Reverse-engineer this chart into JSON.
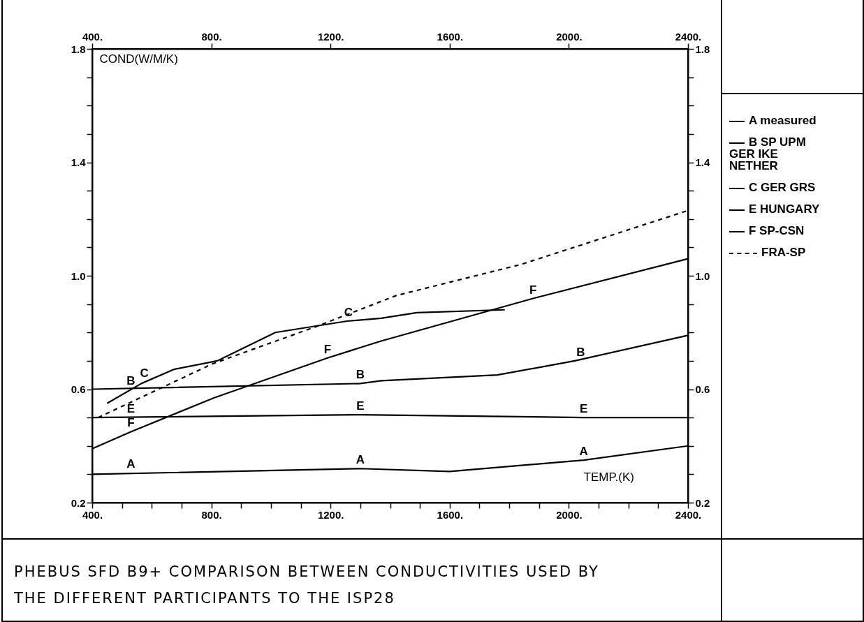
{
  "chart_data": {
    "type": "line",
    "title": "PHEBUS SFD B9+ COMPARISON BETWEEN CONDUCTIVITIES USED BY THE DIFFERENT PARTICIPANTS TO THE ISP28",
    "xlabel": "TEMP.(K)",
    "ylabel": "COND(W/M/K)",
    "legend": "right",
    "line_style": "solid",
    "xlim": [
      400,
      2400
    ],
    "xticks": [
      {
        "value": 400,
        "label": "400."
      },
      {
        "value": 500,
        "label": null
      },
      {
        "value": 600,
        "label": null
      },
      {
        "value": 700,
        "label": null
      },
      {
        "value": 800,
        "label": "800."
      },
      {
        "value": 900,
        "label": null
      },
      {
        "value": 1000,
        "label": null
      },
      {
        "value": 1100,
        "label": null
      },
      {
        "value": 1200,
        "label": "1200."
      },
      {
        "value": 1300,
        "label": null
      },
      {
        "value": 1400,
        "label": null
      },
      {
        "value": 1500,
        "label": null
      },
      {
        "value": 1600,
        "label": "1600."
      },
      {
        "value": 1700,
        "label": null
      },
      {
        "value": 1800,
        "label": null
      },
      {
        "value": 1900,
        "label": null
      },
      {
        "value": 2000,
        "label": "2000."
      },
      {
        "value": 2100,
        "label": null
      },
      {
        "value": 2200,
        "label": null
      },
      {
        "value": 2300,
        "label": null
      },
      {
        "value": 2400,
        "label": "2400."
      }
    ],
    "x2lim": [
      400,
      2400
    ],
    "x2ticks": [
      {
        "value": 400,
        "label": "400."
      },
      {
        "value": 800,
        "label": "800."
      },
      {
        "value": 1200,
        "label": "1200."
      },
      {
        "value": 1600,
        "label": "1600."
      },
      {
        "value": 2000,
        "label": "2000."
      },
      {
        "value": 2400,
        "label": "2400."
      }
    ],
    "ylim": [
      0.2,
      1.8
    ],
    "yticks": [
      0.2,
      {
        "value": 0.3,
        "label": null
      },
      {
        "value": 0.4,
        "label": null
      },
      {
        "value": 0.5,
        "label": null
      },
      0.6,
      {
        "value": 0.7,
        "label": null
      },
      {
        "value": 0.8,
        "label": null
      },
      {
        "value": 0.9,
        "label": null
      },
      {
        "value": 1,
        "label": "1.0"
      },
      {
        "value": 1.1,
        "label": null
      },
      {
        "value": 1.2,
        "label": null
      },
      {
        "value": 1.3,
        "label": null
      },
      1.4,
      {
        "value": 1.5,
        "label": null
      },
      {
        "value": 1.6,
        "label": null
      },
      {
        "value": 1.7,
        "label": null
      },
      1.8
    ],
    "y2lim": [
      0.2,
      1.8
    ],
    "y2ticks": [
      0.2,
      {
        "value": 0.3,
        "label": null
      },
      {
        "value": 0.4,
        "label": null
      },
      {
        "value": 0.5,
        "label": null
      },
      0.6,
      {
        "value": 0.7,
        "label": null
      },
      {
        "value": 0.8,
        "label": null
      },
      {
        "value": 0.9,
        "label": null
      },
      {
        "value": 1,
        "label": "1.0"
      },
      {
        "value": 1.1,
        "label": null
      },
      {
        "value": 1.2,
        "label": null
      },
      {
        "value": 1.3,
        "label": null
      },
      1.4,
      {
        "value": 1.5,
        "label": null
      },
      {
        "value": 1.6,
        "label": null
      },
      {
        "value": 1.7,
        "label": null
      },
      1.8
    ],
    "series": [
      {
        "name": "A measured",
        "color": "#000000",
        "x": [
          400,
          1300,
          1600,
          2050,
          2400
        ],
        "values": [
          0.3,
          0.32,
          0.31,
          0.35,
          0.4
        ]
      },
      {
        "name": "B SP UPM\nGER IKE\nNETHER",
        "color": "#000000",
        "x": [
          400,
          1300,
          1370,
          1760,
          2020,
          2400
        ],
        "values": [
          0.6,
          0.62,
          0.63,
          0.65,
          0.7,
          0.79
        ]
      },
      {
        "name": "C GER GRS",
        "color": "#000000",
        "x": [
          450,
          565,
          675,
          820,
          1015,
          1255,
          1370,
          1490,
          1785
        ],
        "values": [
          0.55,
          0.62,
          0.67,
          0.7,
          0.8,
          0.84,
          0.85,
          0.87,
          0.88
        ]
      },
      {
        "name": "E HUNGARY",
        "color": "#000000",
        "x": [
          400,
          1300,
          2050,
          2400
        ],
        "values": [
          0.5,
          0.51,
          0.5,
          0.5
        ]
      },
      {
        "name": "F SP-CSN",
        "color": "#000000",
        "x": [
          400,
          530,
          810,
          1190,
          1370,
          1880,
          2400
        ],
        "values": [
          0.39,
          0.45,
          0.57,
          0.71,
          0.77,
          0.92,
          1.06
        ]
      },
      {
        "name": "FRA-SP",
        "color": "#000000",
        "line_style": "dashed",
        "x": [
          420,
          805,
          1150,
          1420,
          1840,
          2400
        ],
        "values": [
          0.5,
          0.69,
          0.82,
          0.93,
          1.04,
          1.23
        ]
      }
    ],
    "annotations": [
      {
        "text": "A",
        "x": 530,
        "y": 0.305
      },
      {
        "text": "A",
        "x": 1300,
        "y": 0.32
      },
      {
        "text": "A",
        "x": 2050,
        "y": 0.35
      },
      {
        "text": "B",
        "x": 530,
        "y": 0.6
      },
      {
        "text": "B",
        "x": 1300,
        "y": 0.62
      },
      {
        "text": "B",
        "x": 2040,
        "y": 0.7
      },
      {
        "text": "C",
        "x": 575,
        "y": 0.625
      },
      {
        "text": "C",
        "x": 1260,
        "y": 0.84
      },
      {
        "text": "E",
        "x": 530,
        "y": 0.5
      },
      {
        "text": "E",
        "x": 1300,
        "y": 0.51
      },
      {
        "text": "E",
        "x": 2050,
        "y": 0.5
      },
      {
        "text": "F",
        "x": 530,
        "y": 0.45
      },
      {
        "text": "F",
        "x": 1190,
        "y": 0.71
      },
      {
        "text": "F",
        "x": 1880,
        "y": 0.92
      }
    ]
  }
}
